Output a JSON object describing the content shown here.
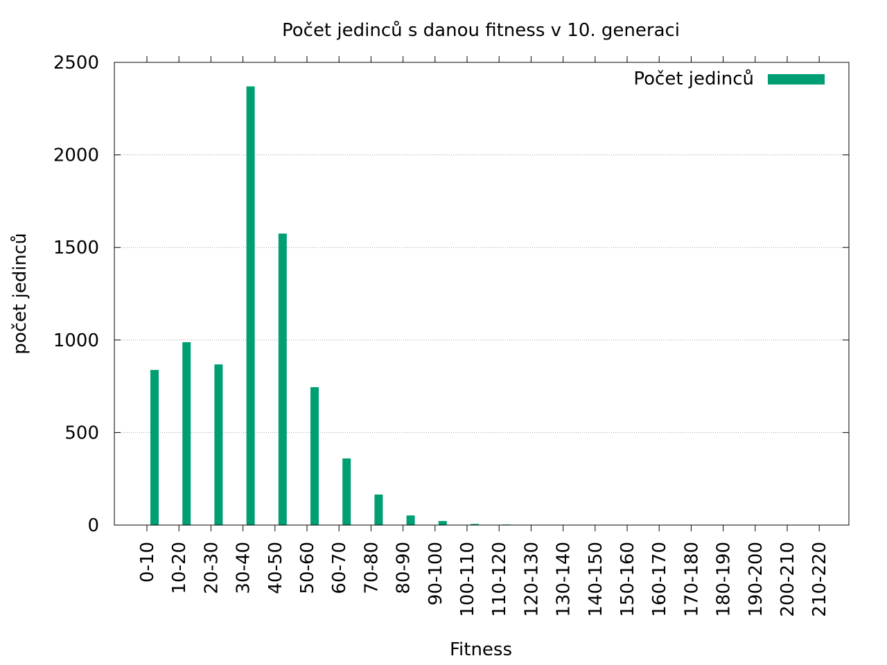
{
  "chart_data": {
    "type": "bar",
    "title": "Počet jedinců s danou fitness v 10. generaci",
    "xlabel": "Fitness",
    "ylabel": "počet jedinců",
    "categories": [
      "0-10",
      "10-20",
      "20-30",
      "30-40",
      "40-50",
      "50-60",
      "60-70",
      "70-80",
      "80-90",
      "90-100",
      "100-110",
      "110-120",
      "120-130",
      "130-140",
      "140-150",
      "150-160",
      "160-170",
      "170-180",
      "180-190",
      "190-200",
      "200-210",
      "210-220"
    ],
    "series": [
      {
        "name": "Počet jedinců",
        "color": "#009e73",
        "values": [
          838,
          988,
          868,
          2370,
          1575,
          745,
          360,
          165,
          52,
          22,
          6,
          3,
          0,
          0,
          0,
          0,
          0,
          0,
          0,
          0,
          0,
          0
        ]
      }
    ],
    "ylim": [
      0,
      2500
    ],
    "yticks": [
      0,
      500,
      1000,
      1500,
      2000,
      2500
    ],
    "grid": "horizontal dotted",
    "legend": "top-right"
  }
}
